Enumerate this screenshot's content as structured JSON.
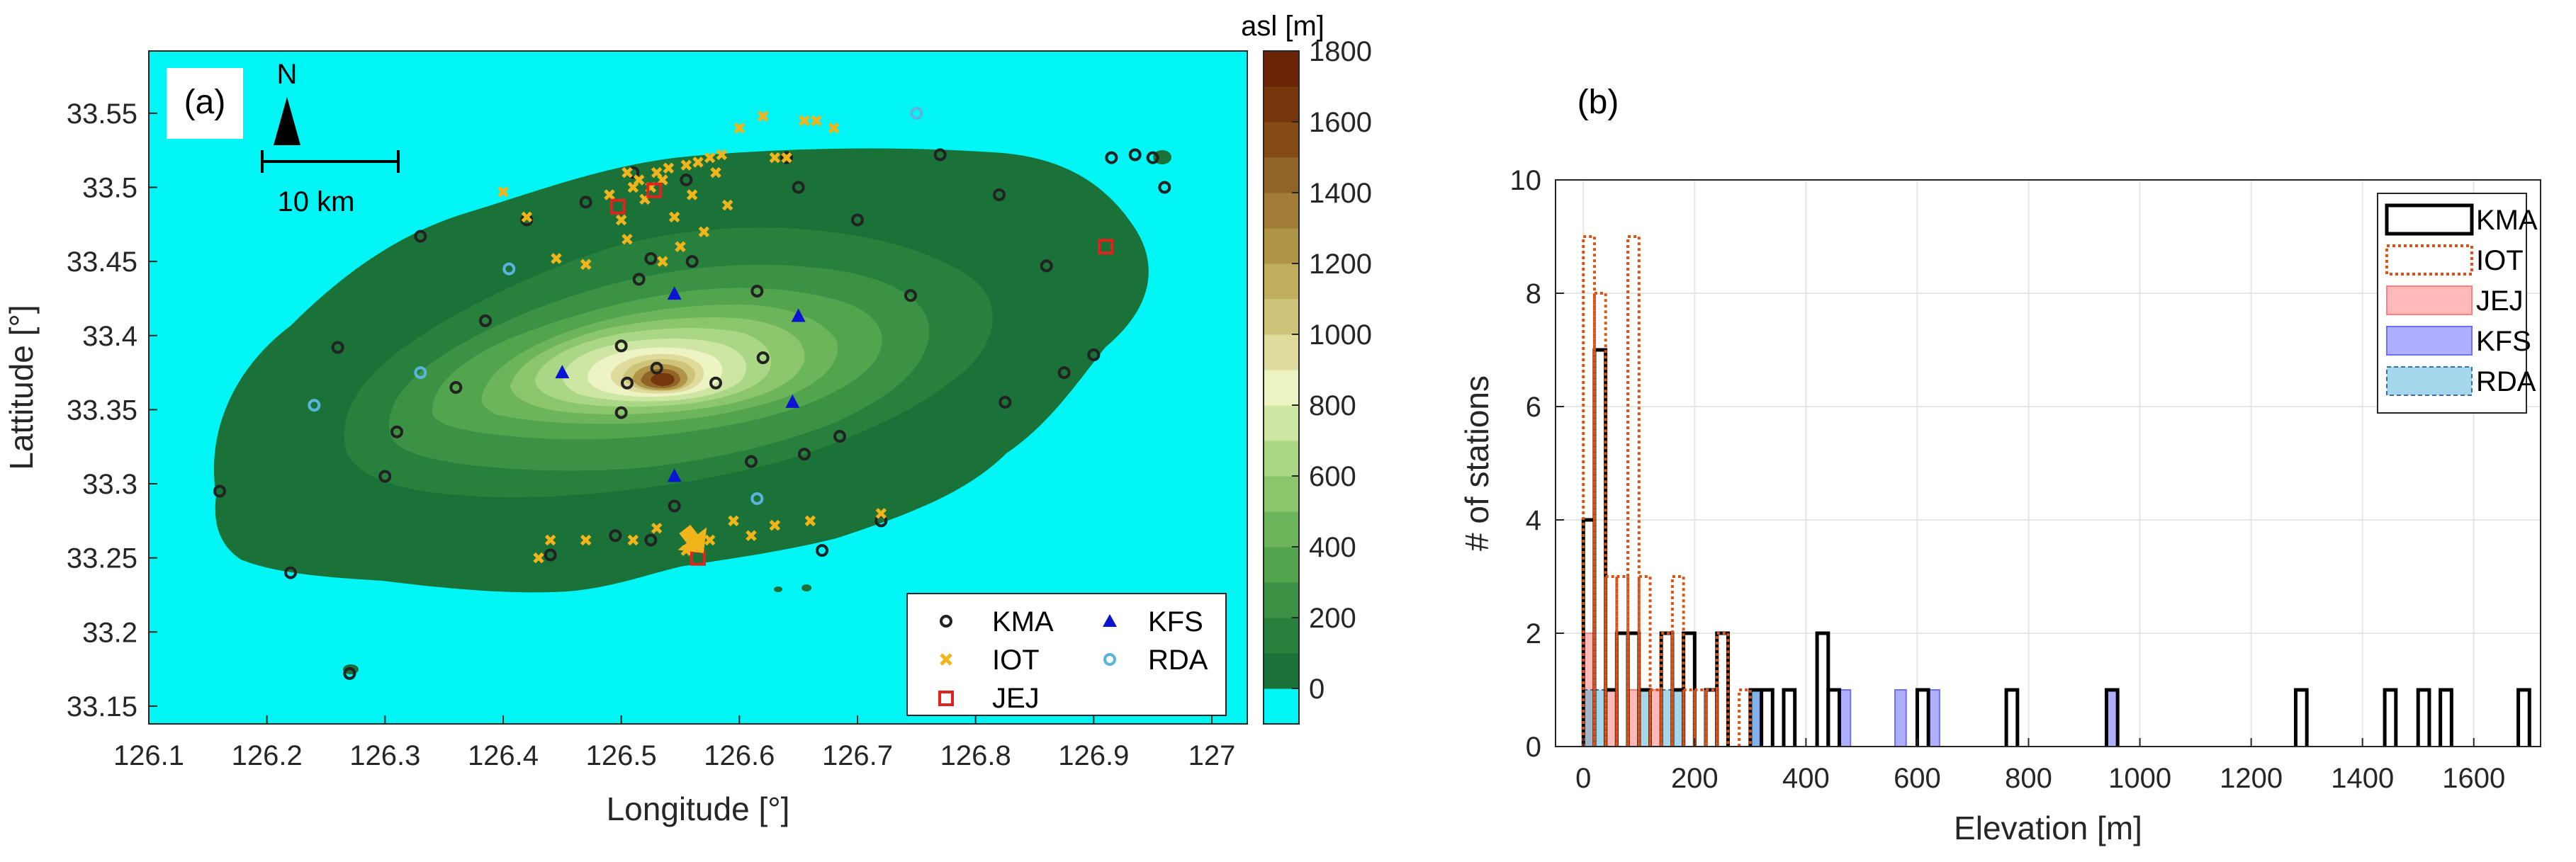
{
  "chart_data": [
    {
      "type": "scatter",
      "panel_label": "(a)",
      "title": "",
      "xlabel": "Longitude [°]",
      "ylabel": "Lattitude [°]",
      "xlim": [
        126.1,
        127.03
      ],
      "ylim": [
        33.138,
        33.592
      ],
      "xticks": [
        "126.1",
        "126.2",
        "126.3",
        "126.4",
        "126.5",
        "126.6",
        "126.7",
        "126.8",
        "126.9",
        "127"
      ],
      "yticks": [
        "33.15",
        "33.2",
        "33.25",
        "33.3",
        "33.35",
        "33.4",
        "33.45",
        "33.5",
        "33.55"
      ],
      "colorbar": {
        "label": "asl [m]",
        "range": [
          -100,
          1800
        ],
        "ticks": [
          "1800",
          "1600",
          "1400",
          "1200",
          "1000",
          "800",
          "600",
          "400",
          "200",
          "0"
        ],
        "colors": [
          "#1A7238",
          "#27813D",
          "#3B9244",
          "#53A54D",
          "#6DB55A",
          "#8BC66C",
          "#A9D785",
          "#CDE6A4",
          "#EEF3C4",
          "#DEDB9C",
          "#CDC479",
          "#BEAE5D",
          "#B09548",
          "#A17C36",
          "#926326",
          "#844B17",
          "#76360C",
          "#6A2405"
        ],
        "sea_color": "#00F5F5"
      },
      "annotations": {
        "north": "N",
        "scale_bar": "10 km",
        "arrow_color": "#F2B41B"
      },
      "series": [
        {
          "name": "KMA",
          "marker": "circle",
          "color": "#222222",
          "points": [
            [
              126.16,
              33.295
            ],
            [
              126.22,
              33.24
            ],
            [
              126.26,
              33.392
            ],
            [
              126.27,
              33.172
            ],
            [
              126.3,
              33.305
            ],
            [
              126.31,
              33.335
            ],
            [
              126.33,
              33.467
            ],
            [
              126.36,
              33.365
            ],
            [
              126.385,
              33.41
            ],
            [
              126.42,
              33.478
            ],
            [
              126.44,
              33.252
            ],
            [
              126.47,
              33.49
            ],
            [
              126.495,
              33.265
            ],
            [
              126.5,
              33.348
            ],
            [
              126.5,
              33.393
            ],
            [
              126.505,
              33.368
            ],
            [
              126.51,
              33.51
            ],
            [
              126.515,
              33.438
            ],
            [
              126.525,
              33.262
            ],
            [
              126.525,
              33.452
            ],
            [
              126.53,
              33.378
            ],
            [
              126.545,
              33.285
            ],
            [
              126.555,
              33.505
            ],
            [
              126.56,
              33.45
            ],
            [
              126.58,
              33.368
            ],
            [
              126.61,
              33.315
            ],
            [
              126.615,
              33.43
            ],
            [
              126.62,
              33.385
            ],
            [
              126.64,
              33.52
            ],
            [
              126.65,
              33.5
            ],
            [
              126.655,
              33.32
            ],
            [
              126.67,
              33.255
            ],
            [
              126.685,
              33.332
            ],
            [
              126.7,
              33.478
            ],
            [
              126.72,
              33.275
            ],
            [
              126.745,
              33.427
            ],
            [
              126.77,
              33.522
            ],
            [
              126.82,
              33.495
            ],
            [
              126.825,
              33.355
            ],
            [
              126.86,
              33.447
            ],
            [
              126.875,
              33.375
            ],
            [
              126.9,
              33.387
            ],
            [
              126.915,
              33.52
            ],
            [
              126.935,
              33.522
            ],
            [
              126.95,
              33.52
            ],
            [
              126.96,
              33.5
            ]
          ]
        },
        {
          "name": "IOT",
          "marker": "x",
          "color": "#F2B41B",
          "points": [
            [
              126.42,
              33.48
            ],
            [
              126.445,
              33.452
            ],
            [
              126.47,
              33.448
            ],
            [
              126.49,
              33.495
            ],
            [
              126.5,
              33.478
            ],
            [
              126.505,
              33.51
            ],
            [
              126.51,
              33.5
            ],
            [
              126.515,
              33.505
            ],
            [
              126.52,
              33.492
            ],
            [
              126.525,
              33.5
            ],
            [
              126.53,
              33.51
            ],
            [
              126.535,
              33.505
            ],
            [
              126.54,
              33.513
            ],
            [
              126.545,
              33.48
            ],
            [
              126.55,
              33.46
            ],
            [
              126.555,
              33.515
            ],
            [
              126.56,
              33.495
            ],
            [
              126.565,
              33.517
            ],
            [
              126.57,
              33.47
            ],
            [
              126.575,
              33.52
            ],
            [
              126.58,
              33.51
            ],
            [
              126.585,
              33.522
            ],
            [
              126.59,
              33.488
            ],
            [
              126.6,
              33.54
            ],
            [
              126.62,
              33.548
            ],
            [
              126.63,
              33.52
            ],
            [
              126.655,
              33.545
            ],
            [
              126.665,
              33.545
            ],
            [
              126.68,
              33.54
            ],
            [
              126.64,
              33.52
            ],
            [
              126.4,
              33.497
            ],
            [
              126.505,
              33.465
            ],
            [
              126.535,
              33.45
            ],
            [
              126.44,
              33.262
            ],
            [
              126.47,
              33.262
            ],
            [
              126.51,
              33.262
            ],
            [
              126.53,
              33.27
            ],
            [
              126.555,
              33.255
            ],
            [
              126.575,
              33.262
            ],
            [
              126.595,
              33.275
            ],
            [
              126.61,
              33.265
            ],
            [
              126.63,
              33.272
            ],
            [
              126.66,
              33.275
            ],
            [
              126.72,
              33.28
            ],
            [
              126.43,
              33.25
            ]
          ]
        },
        {
          "name": "JEJ",
          "marker": "square",
          "color": "#E0231C",
          "points": [
            [
              126.497,
              33.487
            ],
            [
              126.528,
              33.498
            ],
            [
              126.565,
              33.25
            ],
            [
              126.91,
              33.46
            ]
          ]
        },
        {
          "name": "KFS",
          "marker": "triangle",
          "color": "#0A14D2",
          "points": [
            [
              126.45,
              33.375
            ],
            [
              126.545,
              33.428
            ],
            [
              126.65,
              33.413
            ],
            [
              126.645,
              33.355
            ],
            [
              126.545,
              33.305
            ]
          ]
        },
        {
          "name": "RDA",
          "marker": "circle",
          "color": "#5AB4DC",
          "points": [
            [
              126.24,
              33.353
            ],
            [
              126.33,
              33.375
            ],
            [
              126.405,
              33.445
            ],
            [
              126.615,
              33.29
            ],
            [
              126.75,
              33.55
            ]
          ]
        }
      ]
    },
    {
      "type": "histogram",
      "panel_label": "(b)",
      "title": "",
      "xlabel": "Elevation [m]",
      "ylabel": "# of stations",
      "xlim": [
        -50,
        1720
      ],
      "ylim": [
        0,
        10
      ],
      "xticks": [
        0,
        200,
        400,
        600,
        800,
        1000,
        1200,
        1400,
        1600
      ],
      "yticks": [
        0,
        2,
        4,
        6,
        8,
        10
      ],
      "grid": true,
      "legend_position": "top-right",
      "bin_width": 20,
      "series": [
        {
          "name": "KMA",
          "style": "stairs",
          "color": "#000000",
          "bins": [
            [
              0,
              4
            ],
            [
              20,
              7
            ],
            [
              40,
              1
            ],
            [
              60,
              2
            ],
            [
              80,
              2
            ],
            [
              100,
              1
            ],
            [
              120,
              0
            ],
            [
              140,
              2
            ],
            [
              160,
              1
            ],
            [
              180,
              2
            ],
            [
              200,
              0
            ],
            [
              220,
              1
            ],
            [
              240,
              2
            ],
            [
              260,
              0
            ],
            [
              280,
              0
            ],
            [
              300,
              1
            ],
            [
              320,
              1
            ],
            [
              340,
              0
            ],
            [
              360,
              1
            ],
            [
              380,
              0
            ],
            [
              400,
              0
            ],
            [
              420,
              2
            ],
            [
              440,
              1
            ],
            [
              600,
              1
            ],
            [
              760,
              1
            ],
            [
              940,
              1
            ],
            [
              1280,
              1
            ],
            [
              1440,
              1
            ],
            [
              1500,
              1
            ],
            [
              1540,
              1
            ],
            [
              1680,
              1
            ]
          ]
        },
        {
          "name": "IOT",
          "style": "dotted-stairs",
          "color": "#D95319",
          "bins": [
            [
              0,
              9
            ],
            [
              20,
              8
            ],
            [
              40,
              3
            ],
            [
              60,
              3
            ],
            [
              80,
              9
            ],
            [
              100,
              3
            ],
            [
              120,
              1
            ],
            [
              140,
              2
            ],
            [
              160,
              3
            ],
            [
              180,
              1
            ],
            [
              200,
              1
            ],
            [
              220,
              1
            ],
            [
              240,
              2
            ],
            [
              260,
              0
            ],
            [
              280,
              1
            ]
          ]
        },
        {
          "name": "JEJ",
          "style": "filled",
          "color": "#FF8080",
          "bins": [
            [
              0,
              2
            ],
            [
              40,
              1
            ],
            [
              80,
              1
            ],
            [
              120,
              1
            ]
          ]
        },
        {
          "name": "KFS",
          "style": "filled",
          "color": "#6E6EFF",
          "bins": [
            [
              300,
              1
            ],
            [
              460,
              1
            ],
            [
              560,
              1
            ],
            [
              620,
              1
            ],
            [
              940,
              1
            ]
          ]
        },
        {
          "name": "RDA",
          "style": "filled-dashed",
          "color": "#5AB4DC",
          "bins": [
            [
              0,
              1
            ],
            [
              20,
              1
            ],
            [
              100,
              1
            ],
            [
              140,
              1
            ],
            [
              160,
              1
            ],
            [
              300,
              1
            ]
          ]
        }
      ]
    }
  ]
}
